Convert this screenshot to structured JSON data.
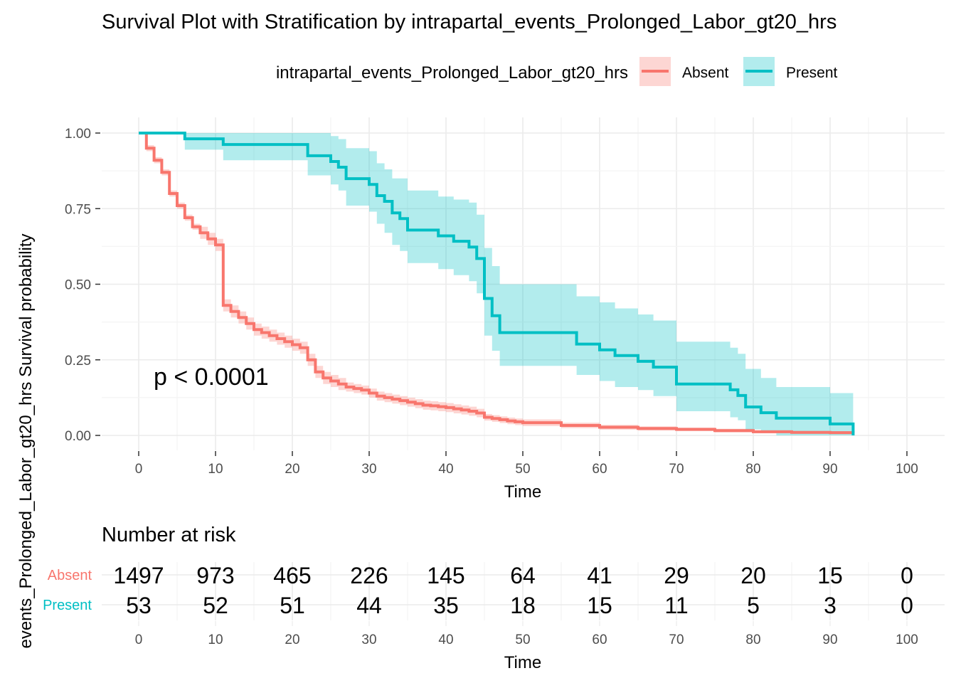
{
  "chart_data": {
    "type": "line",
    "subtype": "kaplan-meier survival",
    "title": "Survival Plot with Stratification by intrapartal_events_Prolonged_Labor_gt20_hrs",
    "xlabel": "Time",
    "ylabel": "events_Prolonged_Labor_gt20_hrs Survival probability",
    "xlim": [
      0,
      100
    ],
    "ylim": [
      0,
      1
    ],
    "x_ticks": [
      0,
      10,
      20,
      30,
      40,
      50,
      60,
      70,
      80,
      90,
      100
    ],
    "y_ticks": [
      "0.00",
      "0.25",
      "0.50",
      "0.75",
      "1.00"
    ],
    "legend": {
      "title": "intrapartal_events_Prolonged_Labor_gt20_hrs",
      "position": "top",
      "entries": [
        "Absent",
        "Present"
      ]
    },
    "annotation": "p < 0.0001",
    "colors": {
      "Absent": "#F8766D",
      "Present": "#00BFC4",
      "grid": "#ebebeb"
    },
    "series": [
      {
        "name": "Absent",
        "color": "#F8766D",
        "step_x": [
          0,
          1,
          2,
          3,
          4,
          5,
          6,
          7,
          8,
          9,
          10,
          11,
          12,
          13,
          14,
          15,
          16,
          17,
          18,
          19,
          20,
          21,
          22,
          23,
          24,
          25,
          26,
          27,
          28,
          29,
          30,
          31,
          32,
          33,
          34,
          35,
          36,
          37,
          38,
          39,
          40,
          41,
          42,
          43,
          44,
          45,
          46,
          47,
          48,
          49,
          50,
          55,
          60,
          65,
          70,
          75,
          80,
          85,
          90,
          93
        ],
        "step_y": [
          1.0,
          0.95,
          0.91,
          0.87,
          0.8,
          0.76,
          0.72,
          0.69,
          0.67,
          0.65,
          0.63,
          0.43,
          0.41,
          0.39,
          0.37,
          0.35,
          0.34,
          0.33,
          0.32,
          0.31,
          0.3,
          0.29,
          0.25,
          0.21,
          0.19,
          0.18,
          0.17,
          0.16,
          0.155,
          0.15,
          0.14,
          0.13,
          0.125,
          0.12,
          0.115,
          0.11,
          0.105,
          0.1,
          0.098,
          0.095,
          0.092,
          0.088,
          0.084,
          0.08,
          0.074,
          0.06,
          0.056,
          0.052,
          0.048,
          0.045,
          0.042,
          0.033,
          0.027,
          0.023,
          0.02,
          0.016,
          0.012,
          0.01,
          0.009,
          0.008
        ],
        "lower": [
          1.0,
          0.94,
          0.9,
          0.86,
          0.79,
          0.75,
          0.71,
          0.68,
          0.65,
          0.63,
          0.61,
          0.41,
          0.39,
          0.37,
          0.35,
          0.33,
          0.32,
          0.31,
          0.3,
          0.29,
          0.28,
          0.27,
          0.23,
          0.19,
          0.17,
          0.16,
          0.15,
          0.145,
          0.14,
          0.135,
          0.125,
          0.115,
          0.11,
          0.105,
          0.1,
          0.095,
          0.09,
          0.085,
          0.083,
          0.08,
          0.077,
          0.073,
          0.069,
          0.065,
          0.06,
          0.049,
          0.045,
          0.041,
          0.037,
          0.034,
          0.031,
          0.024,
          0.019,
          0.016,
          0.014,
          0.01,
          0.007,
          0.005,
          0.004,
          0.003
        ],
        "upper": [
          1.0,
          0.96,
          0.92,
          0.88,
          0.81,
          0.77,
          0.73,
          0.7,
          0.69,
          0.67,
          0.65,
          0.45,
          0.43,
          0.41,
          0.39,
          0.37,
          0.36,
          0.35,
          0.34,
          0.33,
          0.32,
          0.31,
          0.27,
          0.23,
          0.21,
          0.2,
          0.19,
          0.175,
          0.17,
          0.165,
          0.155,
          0.145,
          0.14,
          0.135,
          0.13,
          0.125,
          0.12,
          0.115,
          0.113,
          0.11,
          0.107,
          0.103,
          0.099,
          0.095,
          0.088,
          0.071,
          0.067,
          0.063,
          0.059,
          0.056,
          0.053,
          0.042,
          0.035,
          0.03,
          0.026,
          0.022,
          0.017,
          0.015,
          0.014,
          0.013
        ]
      },
      {
        "name": "Present",
        "color": "#00BFC4",
        "step_x": [
          0,
          6,
          11,
          22,
          25,
          26,
          27,
          30,
          31,
          32,
          33,
          34,
          35,
          37,
          38,
          39,
          40,
          41,
          43,
          44,
          45,
          46,
          47,
          55,
          57,
          60,
          62,
          65,
          67,
          70,
          75,
          77,
          78,
          79,
          81,
          83,
          85,
          88,
          90,
          93
        ],
        "step_y": [
          1.0,
          0.981,
          0.962,
          0.925,
          0.906,
          0.887,
          0.849,
          0.83,
          0.793,
          0.774,
          0.736,
          0.717,
          0.679,
          0.679,
          0.679,
          0.66,
          0.66,
          0.642,
          0.623,
          0.585,
          0.453,
          0.396,
          0.34,
          0.34,
          0.302,
          0.283,
          0.264,
          0.245,
          0.226,
          0.17,
          0.17,
          0.151,
          0.132,
          0.094,
          0.075,
          0.057,
          0.057,
          0.057,
          0.038,
          0.0
        ],
        "lower": [
          1.0,
          0.945,
          0.91,
          0.86,
          0.83,
          0.81,
          0.76,
          0.74,
          0.7,
          0.67,
          0.63,
          0.61,
          0.57,
          0.57,
          0.57,
          0.55,
          0.55,
          0.53,
          0.51,
          0.47,
          0.33,
          0.28,
          0.23,
          0.23,
          0.2,
          0.18,
          0.16,
          0.15,
          0.13,
          0.08,
          0.08,
          0.06,
          0.05,
          0.02,
          0.01,
          0.0,
          0.0,
          0.0,
          0.0,
          0.0
        ],
        "upper": [
          1.0,
          1.0,
          1.0,
          1.0,
          0.99,
          0.98,
          0.95,
          0.94,
          0.9,
          0.88,
          0.85,
          0.85,
          0.81,
          0.81,
          0.81,
          0.79,
          0.79,
          0.78,
          0.77,
          0.73,
          0.62,
          0.56,
          0.5,
          0.5,
          0.46,
          0.44,
          0.42,
          0.4,
          0.38,
          0.31,
          0.31,
          0.29,
          0.27,
          0.22,
          0.19,
          0.16,
          0.16,
          0.16,
          0.14,
          0.14
        ]
      }
    ],
    "risk_table": {
      "title": "Number at risk",
      "xlabel": "Time",
      "times": [
        0,
        10,
        20,
        30,
        40,
        50,
        60,
        70,
        80,
        90,
        100
      ],
      "rows": [
        {
          "name": "Absent",
          "color": "#F8766D",
          "values": [
            1497,
            973,
            465,
            226,
            145,
            64,
            41,
            29,
            20,
            15,
            0
          ]
        },
        {
          "name": "Present",
          "color": "#00BFC4",
          "values": [
            53,
            52,
            51,
            44,
            35,
            18,
            15,
            11,
            5,
            3,
            0
          ]
        }
      ]
    }
  }
}
